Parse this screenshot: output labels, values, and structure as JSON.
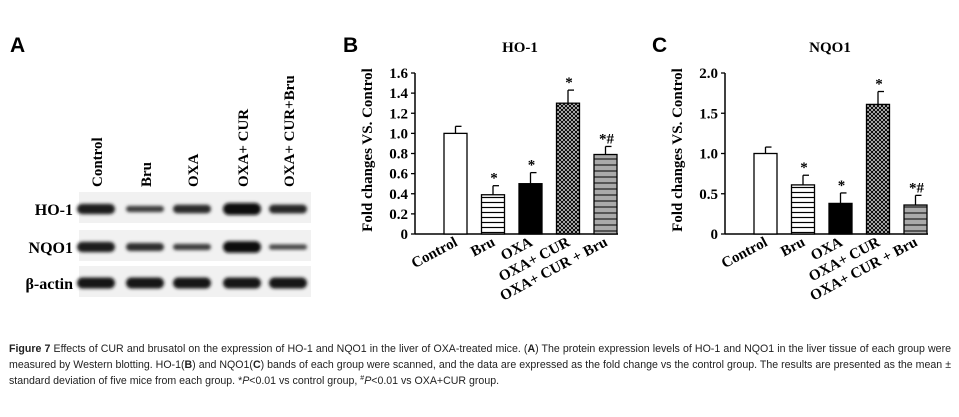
{
  "panels": {
    "a": {
      "letter": "A",
      "lanes": [
        "Control",
        "Bru",
        "OXA",
        "OXA+ CUR",
        "OXA+ CUR+Bru"
      ],
      "rows": [
        {
          "label": "HO-1",
          "band_strength": [
            0.8,
            0.35,
            0.6,
            1.0,
            0.65
          ]
        },
        {
          "label": "NQO1",
          "band_strength": [
            0.8,
            0.55,
            0.35,
            0.95,
            0.25
          ]
        },
        {
          "label": "β-actin",
          "band_strength": [
            0.9,
            0.9,
            0.9,
            0.9,
            0.9
          ]
        }
      ]
    },
    "b": {
      "letter": "B"
    },
    "c": {
      "letter": "C"
    }
  },
  "chart_data": [
    {
      "type": "bar",
      "title": "HO-1",
      "ylabel": "Fold changes VS. Control",
      "xlabel": "",
      "categories": [
        "Control",
        "Bru",
        "OXA",
        "OXA+ CUR",
        "OXA+ CUR + Bru"
      ],
      "values": [
        1.0,
        0.39,
        0.5,
        1.3,
        0.79
      ],
      "errors": [
        0.07,
        0.09,
        0.11,
        0.13,
        0.08
      ],
      "annotations": [
        "",
        "*",
        "*",
        "*",
        "*#"
      ],
      "ylim": [
        0,
        1.6
      ],
      "yticks": [
        "0",
        "0.2",
        "0.4",
        "0.6",
        "0.8",
        "1.0",
        "1.2",
        "1.4",
        "1.6"
      ],
      "ytick_values": [
        0,
        0.2,
        0.4,
        0.6,
        0.8,
        1.0,
        1.2,
        1.4,
        1.6
      ],
      "fills": [
        "white",
        "horizontal-lines",
        "black",
        "crosshatch",
        "gray-horizontal-lines"
      ],
      "grid": false
    },
    {
      "type": "bar",
      "title": "NQO1",
      "ylabel": "Fold changes VS. Control",
      "xlabel": "",
      "categories": [
        "Control",
        "Bru",
        "OXA",
        "OXA+ CUR",
        "OXA+ CUR + Bru"
      ],
      "values": [
        1.0,
        0.61,
        0.38,
        1.61,
        0.36
      ],
      "errors": [
        0.08,
        0.12,
        0.13,
        0.16,
        0.12
      ],
      "annotations": [
        "",
        "*",
        "*",
        "*",
        "*#"
      ],
      "ylim": [
        0,
        2.0
      ],
      "yticks": [
        "0",
        "0.5",
        "1.0",
        "1.5",
        "2.0"
      ],
      "ytick_values": [
        0,
        0.5,
        1.0,
        1.5,
        2.0
      ],
      "fills": [
        "white",
        "horizontal-lines",
        "black",
        "crosshatch",
        "gray-horizontal-lines"
      ],
      "grid": false
    }
  ],
  "caption": {
    "parts": [
      "Figure 7",
      " Effects of CUR and brusatol on the expression of HO-1 and NQO1 in the liver of OXA-treated mice. (",
      "A",
      ") The protein expression levels of HO-1 and NQO1 in the liver tissue of each group were measured by Western blotting. HO-1(",
      "B",
      ") and NQO1(",
      "C",
      ") bands of each group were scanned, and the data are expressed as the fold change vs the control group. The results are presented as the mean ± standard deviation of five mice from each group. *",
      "P",
      "<0.01 vs control group, ",
      "#",
      "P",
      "<0.01 vs OXA+CUR group."
    ]
  }
}
